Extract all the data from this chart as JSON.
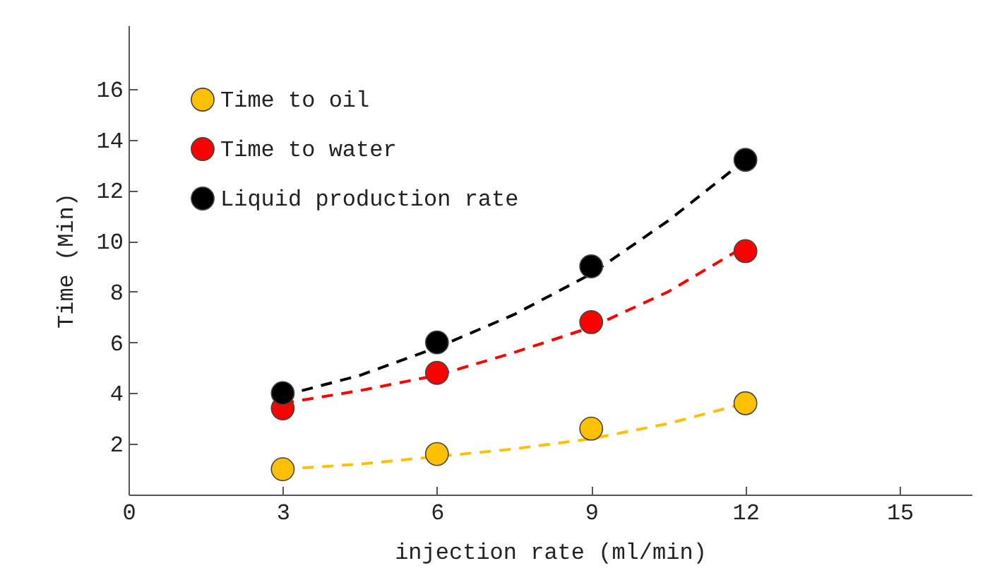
{
  "chart_data": {
    "type": "scatter",
    "xlabel": "injection rate (ml/min)",
    "ylabel": "Time (Min)",
    "x": [
      3,
      6,
      9,
      12
    ],
    "xlim": [
      0,
      16.4
    ],
    "ylim": [
      0,
      18.5
    ],
    "xticks": [
      0,
      3,
      6,
      9,
      12,
      15
    ],
    "yticks": [
      2,
      4,
      6,
      8,
      10,
      12,
      14,
      16
    ],
    "grid": false,
    "legend": "top left",
    "marker": "circle",
    "series": [
      {
        "name": "Time to oil",
        "color": "#ffc000",
        "values": [
          1.0,
          1.6,
          2.6,
          3.6
        ]
      },
      {
        "name": "Time to water",
        "color": "#ff0000",
        "values": [
          3.4,
          4.8,
          6.8,
          9.6
        ]
      },
      {
        "name": "Liquid production rate",
        "color": "#000000",
        "values": [
          4.0,
          6.0,
          9.0,
          13.2
        ]
      },
      {
        "type": "line",
        "line_style": "dashed",
        "marker": "none",
        "color": "#ffc000",
        "x": [
          3,
          4.5,
          6,
          7.5,
          9,
          10.5,
          12
        ],
        "values": [
          1.0,
          1.2,
          1.5,
          1.8,
          2.2,
          2.8,
          3.6
        ]
      },
      {
        "type": "line",
        "line_style": "dashed",
        "marker": "none",
        "color": "#ff0000",
        "x": [
          3,
          4.5,
          6,
          7.5,
          9,
          10.5,
          12
        ],
        "values": [
          3.6,
          4.1,
          4.7,
          5.6,
          6.6,
          8.0,
          9.8
        ]
      },
      {
        "type": "line",
        "line_style": "dashed",
        "marker": "none",
        "color": "#000000",
        "x": [
          3,
          4.5,
          6,
          7.5,
          9,
          10.5,
          12
        ],
        "values": [
          3.9,
          4.7,
          5.8,
          7.1,
          8.7,
          10.8,
          13.2
        ]
      }
    ]
  }
}
